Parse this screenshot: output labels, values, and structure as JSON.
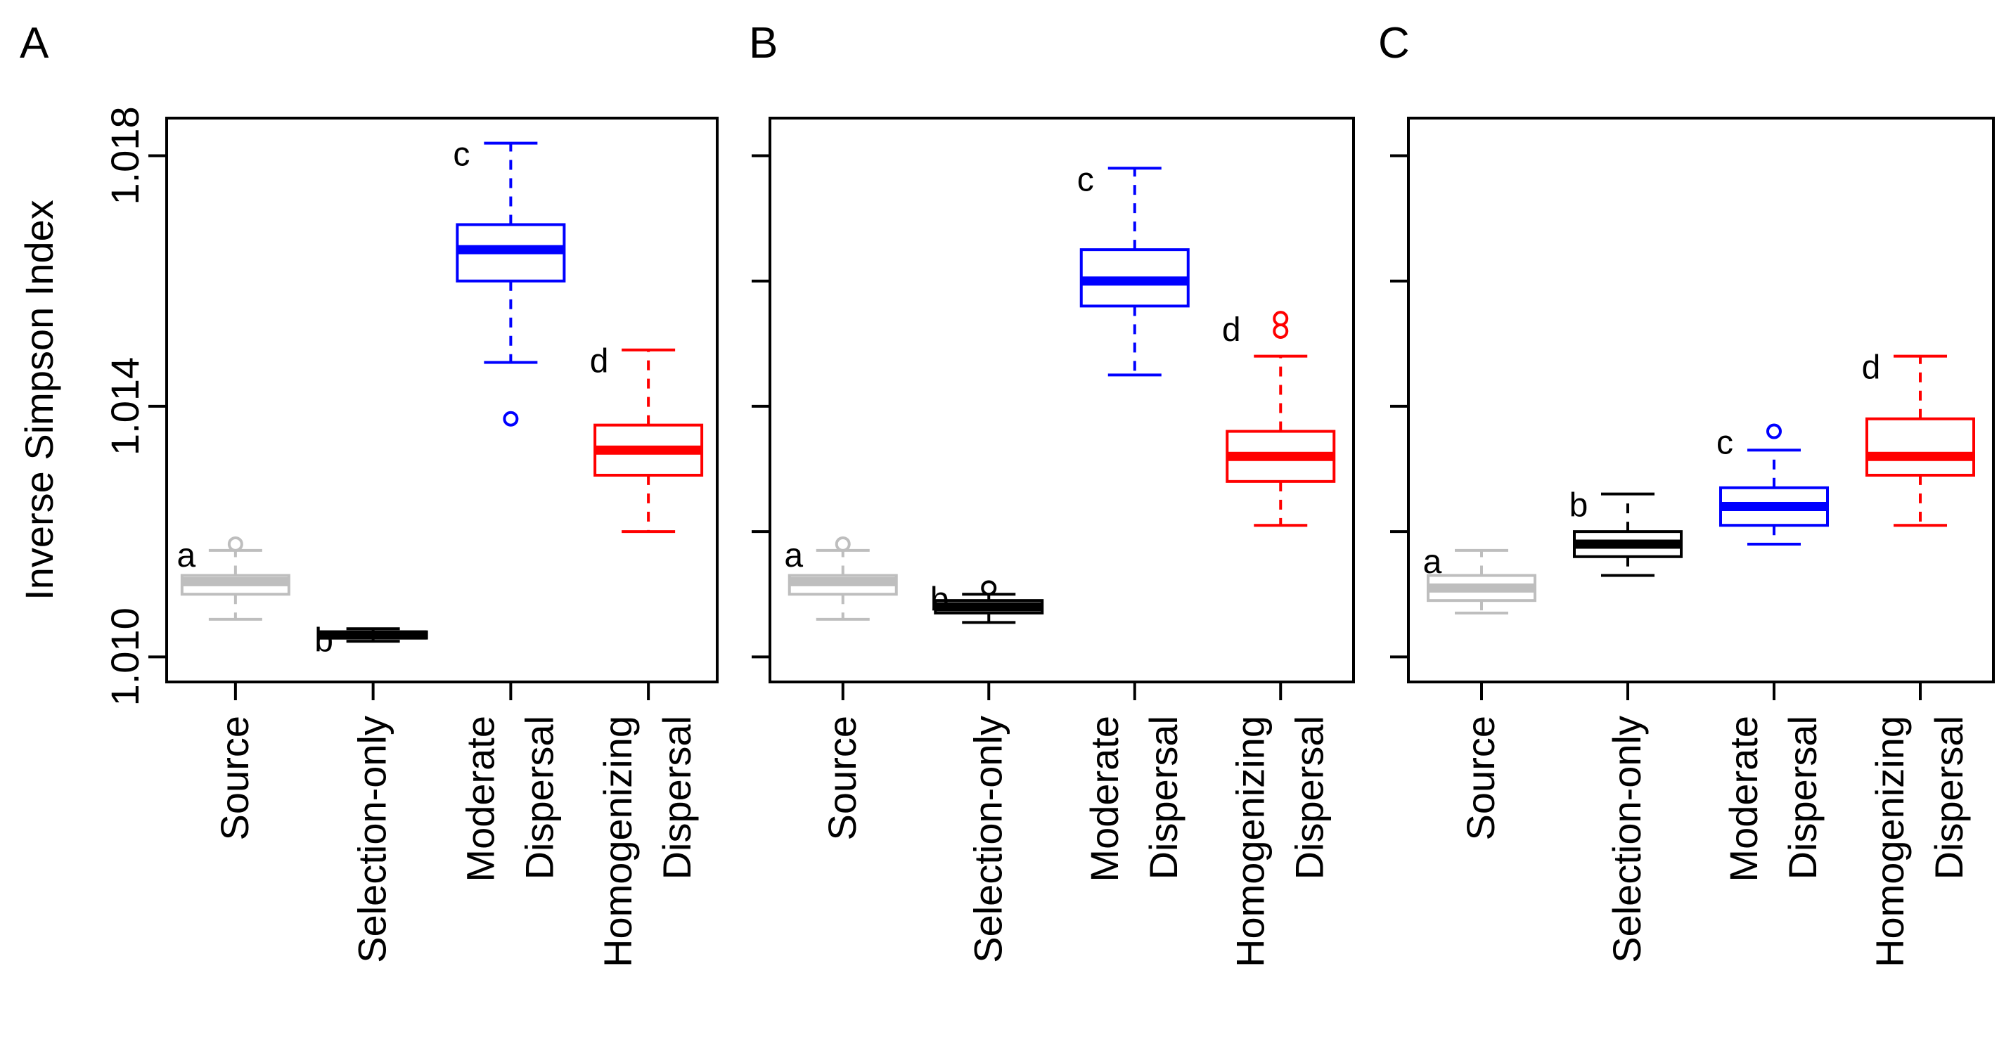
{
  "chart_data": [
    {
      "panel": "A",
      "type": "box",
      "ylabel": "Inverse Simpson Index",
      "ylim": [
        1.0096,
        1.0186
      ],
      "yticks": [
        1.01,
        1.014,
        1.018
      ],
      "yticklabels": [
        "1.010",
        "1.014",
        "1.018"
      ],
      "show_tick_labels": true,
      "categories": [
        "Source",
        "Selection-only",
        "Moderate Dispersal",
        "Homogenizing Dispersal"
      ],
      "category_lines": [
        [
          "Source"
        ],
        [
          "Selection-only"
        ],
        [
          "Moderate",
          "Dispersal"
        ],
        [
          "Homogenizing",
          "Dispersal"
        ]
      ],
      "boxes": [
        {
          "letter": "a",
          "color": "#bebebe",
          "whisker_low": 1.0106,
          "q1": 1.011,
          "median": 1.0112,
          "q3": 1.0113,
          "whisker_high": 1.0117,
          "outliers": [
            1.0118
          ]
        },
        {
          "letter": "b",
          "color": "#000000",
          "whisker_low": 1.01025,
          "q1": 1.0103,
          "median": 1.01035,
          "q3": 1.0104,
          "whisker_high": 1.01045,
          "outliers": []
        },
        {
          "letter": "c",
          "color": "#0000ff",
          "whisker_low": 1.0147,
          "q1": 1.016,
          "median": 1.0165,
          "q3": 1.0169,
          "whisker_high": 1.0182,
          "outliers": [
            1.0138
          ]
        },
        {
          "letter": "d",
          "color": "#ff0000",
          "whisker_low": 1.012,
          "q1": 1.0129,
          "median": 1.0133,
          "q3": 1.0137,
          "whisker_high": 1.0149,
          "outliers": []
        }
      ]
    },
    {
      "panel": "B",
      "type": "box",
      "ylabel": "",
      "ylim": [
        1.0096,
        1.0186
      ],
      "yticks": [
        1.01,
        1.012,
        1.014,
        1.016,
        1.018
      ],
      "yticklabels": [],
      "show_tick_labels": false,
      "categories": [
        "Source",
        "Selection-only",
        "Moderate Dispersal",
        "Homogenizing Dispersal"
      ],
      "category_lines": [
        [
          "Source"
        ],
        [
          "Selection-only"
        ],
        [
          "Moderate",
          "Dispersal"
        ],
        [
          "Homogenizing",
          "Dispersal"
        ]
      ],
      "boxes": [
        {
          "letter": "a",
          "color": "#bebebe",
          "whisker_low": 1.0106,
          "q1": 1.011,
          "median": 1.0112,
          "q3": 1.0113,
          "whisker_high": 1.0117,
          "outliers": [
            1.0118
          ]
        },
        {
          "letter": "b",
          "color": "#000000",
          "whisker_low": 1.01055,
          "q1": 1.0107,
          "median": 1.0108,
          "q3": 1.0109,
          "whisker_high": 1.011,
          "outliers": [
            1.0111
          ]
        },
        {
          "letter": "c",
          "color": "#0000ff",
          "whisker_low": 1.0145,
          "q1": 1.0156,
          "median": 1.016,
          "q3": 1.0165,
          "whisker_high": 1.0178,
          "outliers": []
        },
        {
          "letter": "d",
          "color": "#ff0000",
          "whisker_low": 1.0121,
          "q1": 1.0128,
          "median": 1.0132,
          "q3": 1.0136,
          "whisker_high": 1.0148,
          "outliers": [
            1.0152,
            1.0154
          ]
        }
      ]
    },
    {
      "panel": "C",
      "type": "box",
      "ylabel": "",
      "ylim": [
        1.0096,
        1.0186
      ],
      "yticks": [
        1.01,
        1.012,
        1.014,
        1.016,
        1.018
      ],
      "yticklabels": [],
      "show_tick_labels": false,
      "categories": [
        "Source",
        "Selection-only",
        "Moderate Dispersal",
        "Homogenizing Dispersal"
      ],
      "category_lines": [
        [
          "Source"
        ],
        [
          "Selection-only"
        ],
        [
          "Moderate",
          "Dispersal"
        ],
        [
          "Homogenizing",
          "Dispersal"
        ]
      ],
      "boxes": [
        {
          "letter": "a",
          "color": "#bebebe",
          "whisker_low": 1.0107,
          "q1": 1.0109,
          "median": 1.0111,
          "q3": 1.0113,
          "whisker_high": 1.0117,
          "outliers": []
        },
        {
          "letter": "b",
          "color": "#000000",
          "whisker_low": 1.0113,
          "q1": 1.0116,
          "median": 1.0118,
          "q3": 1.012,
          "whisker_high": 1.0126,
          "outliers": []
        },
        {
          "letter": "c",
          "color": "#0000ff",
          "whisker_low": 1.0118,
          "q1": 1.0121,
          "median": 1.0124,
          "q3": 1.0127,
          "whisker_high": 1.0133,
          "outliers": [
            1.0136
          ]
        },
        {
          "letter": "d",
          "color": "#ff0000",
          "whisker_low": 1.0121,
          "q1": 1.0129,
          "median": 1.0132,
          "q3": 1.0138,
          "whisker_high": 1.0148,
          "outliers": []
        }
      ]
    }
  ]
}
